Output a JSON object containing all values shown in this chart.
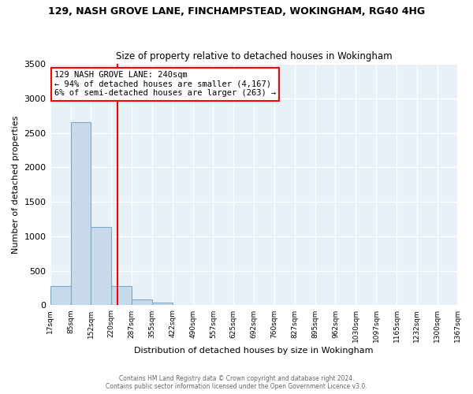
{
  "title": "129, NASH GROVE LANE, FINCHAMPSTEAD, WOKINGHAM, RG40 4HG",
  "subtitle": "Size of property relative to detached houses in Wokingham",
  "xlabel": "Distribution of detached houses by size in Wokingham",
  "ylabel": "Number of detached properties",
  "bar_color": "#c8daea",
  "bar_edge_color": "#7aaac8",
  "bin_edges": [
    17,
    85,
    152,
    220,
    287,
    355,
    422,
    490,
    557,
    625,
    692,
    760,
    827,
    895,
    962,
    1030,
    1097,
    1165,
    1232,
    1300,
    1367
  ],
  "bar_heights": [
    280,
    2650,
    1140,
    280,
    80,
    40,
    10,
    0,
    0,
    0,
    0,
    0,
    0,
    0,
    0,
    0,
    0,
    0,
    0,
    0
  ],
  "property_line_x": 240,
  "property_line_color": "red",
  "annotation_line1": "129 NASH GROVE LANE: 240sqm",
  "annotation_line2": "← 94% of detached houses are smaller (4,167)",
  "annotation_line3": "6% of semi-detached houses are larger (263) →",
  "annotation_box_color": "white",
  "annotation_box_edge_color": "red",
  "ylim": [
    0,
    3500
  ],
  "yticks": [
    0,
    500,
    1000,
    1500,
    2000,
    2500,
    3000,
    3500
  ],
  "tick_labels": [
    "17sqm",
    "85sqm",
    "152sqm",
    "220sqm",
    "287sqm",
    "355sqm",
    "422sqm",
    "490sqm",
    "557sqm",
    "625sqm",
    "692sqm",
    "760sqm",
    "827sqm",
    "895sqm",
    "962sqm",
    "1030sqm",
    "1097sqm",
    "1165sqm",
    "1232sqm",
    "1300sqm",
    "1367sqm"
  ],
  "footer_line1": "Contains HM Land Registry data © Crown copyright and database right 2024.",
  "footer_line2": "Contains public sector information licensed under the Open Government Licence v3.0.",
  "bg_color": "#ffffff",
  "plot_bg_color": "#e8f0f8",
  "grid_color": "#ffffff"
}
